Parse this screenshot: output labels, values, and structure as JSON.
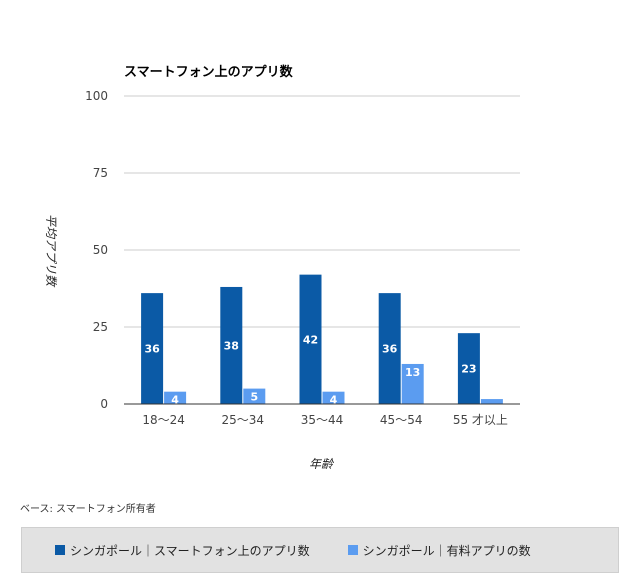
{
  "chart_data": {
    "type": "bar",
    "title": "スマートフォン上のアプリ数",
    "xlabel": "年齢",
    "ylabel": "平均アプリ数",
    "ylim": [
      0,
      100
    ],
    "yticks": [
      0,
      25,
      50,
      75,
      100
    ],
    "grid": true,
    "legend_position": "bottom",
    "categories": [
      "18〜24",
      "25〜34",
      "35〜44",
      "45〜54",
      "55 才以上"
    ],
    "series": [
      {
        "name": "シンガポール｜スマートフォン上のアプリ数",
        "values": [
          36,
          38,
          42,
          36,
          23
        ],
        "labels": [
          "36",
          "38",
          "42",
          "36",
          "23"
        ],
        "color": "#0b5aa6"
      },
      {
        "name": "シンガポール｜有料アプリの数",
        "values": [
          4,
          5,
          4,
          13,
          1.6
        ],
        "labels": [
          "4",
          "5",
          "4",
          "13",
          ""
        ],
        "color": "#5b9cf0"
      }
    ]
  },
  "footnote": "ベース: スマートフォン所有者"
}
